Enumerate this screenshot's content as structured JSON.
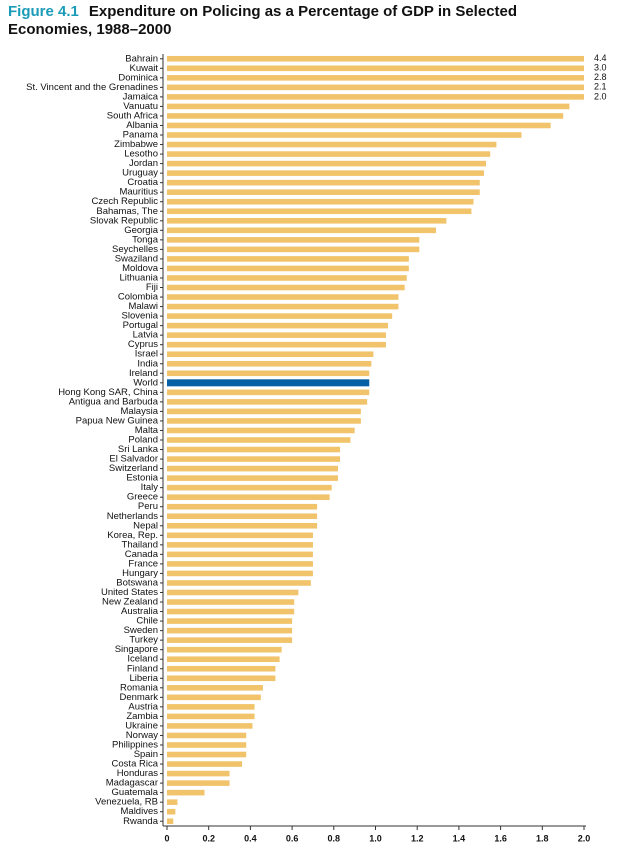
{
  "chart_data": {
    "type": "barh",
    "figure_label": "Figure 4.1",
    "title": "Expenditure on Policing as a Percentage of GDP in Selected Economies, 1988–2000",
    "categories": [
      "Bahrain",
      "Kuwait",
      "Dominica",
      "St. Vincent and the Grenadines",
      "Jamaica",
      "Vanuatu",
      "South Africa",
      "Albania",
      "Panama",
      "Zimbabwe",
      "Lesotho",
      "Jordan",
      "Uruguay",
      "Croatia",
      "Mauritius",
      "Czech Republic",
      "Bahamas, The",
      "Slovak Republic",
      "Georgia",
      "Tonga",
      "Seychelles",
      "Swaziland",
      "Moldova",
      "Lithuania",
      "Fiji",
      "Colombia",
      "Malawi",
      "Slovenia",
      "Portugal",
      "Latvia",
      "Cyprus",
      "Israel",
      "India",
      "Ireland",
      "World",
      "Hong Kong SAR, China",
      "Antigua and Barbuda",
      "Malaysia",
      "Papua New Guinea",
      "Malta",
      "Poland",
      "Sri Lanka",
      "El Salvador",
      "Switzerland",
      "Estonia",
      "Italy",
      "Greece",
      "Peru",
      "Netherlands",
      "Nepal",
      "Korea, Rep.",
      "Thailand",
      "Canada",
      "France",
      "Hungary",
      "Botswana",
      "United States",
      "New Zealand",
      "Australia",
      "Chile",
      "Sweden",
      "Turkey",
      "Singapore",
      "Iceland",
      "Finland",
      "Liberia",
      "Romania",
      "Denmark",
      "Austria",
      "Zambia",
      "Ukraine",
      "Norway",
      "Philippines",
      "Spain",
      "Costa Rica",
      "Honduras",
      "Madagascar",
      "Guatemala",
      "Venezuela, RB",
      "Maldives",
      "Rwanda"
    ],
    "values": [
      4.4,
      3.0,
      2.8,
      2.1,
      2.0,
      1.93,
      1.9,
      1.84,
      1.7,
      1.58,
      1.55,
      1.53,
      1.52,
      1.5,
      1.5,
      1.47,
      1.46,
      1.34,
      1.29,
      1.21,
      1.21,
      1.16,
      1.16,
      1.15,
      1.14,
      1.11,
      1.11,
      1.08,
      1.06,
      1.05,
      1.05,
      0.99,
      0.98,
      0.97,
      0.97,
      0.97,
      0.96,
      0.93,
      0.93,
      0.9,
      0.88,
      0.83,
      0.83,
      0.82,
      0.82,
      0.79,
      0.78,
      0.72,
      0.72,
      0.72,
      0.7,
      0.7,
      0.7,
      0.7,
      0.7,
      0.69,
      0.63,
      0.61,
      0.61,
      0.6,
      0.6,
      0.6,
      0.55,
      0.54,
      0.52,
      0.52,
      0.46,
      0.45,
      0.42,
      0.42,
      0.41,
      0.38,
      0.38,
      0.38,
      0.36,
      0.3,
      0.3,
      0.18,
      0.05,
      0.04,
      0.03
    ],
    "value_labels": [
      "4.4",
      "3.0",
      "2.8",
      "2.1",
      "2.0",
      null,
      null,
      null,
      null,
      null,
      null,
      null,
      null,
      null,
      null,
      null,
      null,
      null,
      null,
      null,
      null,
      null,
      null,
      null,
      null,
      null,
      null,
      null,
      null,
      null,
      null,
      null,
      null,
      null,
      null,
      null,
      null,
      null,
      null,
      null,
      null,
      null,
      null,
      null,
      null,
      null,
      null,
      null,
      null,
      null,
      null,
      null,
      null,
      null,
      null,
      null,
      null,
      null,
      null,
      null,
      null,
      null,
      null,
      null,
      null,
      null,
      null,
      null,
      null,
      null,
      null,
      null,
      null,
      null,
      null,
      null,
      null,
      null,
      null,
      null,
      null
    ],
    "color": "#f1c46c",
    "highlight": {
      "category": "World",
      "color": "#0760a6"
    },
    "xlim": [
      0,
      2
    ],
    "xticks": [
      0,
      0.2,
      0.4,
      0.6,
      0.8,
      {
        "value": 1,
        "label": "1.0"
      },
      1.2,
      1.4,
      1.6,
      1.8,
      {
        "value": 2,
        "label": "2.0"
      }
    ]
  }
}
